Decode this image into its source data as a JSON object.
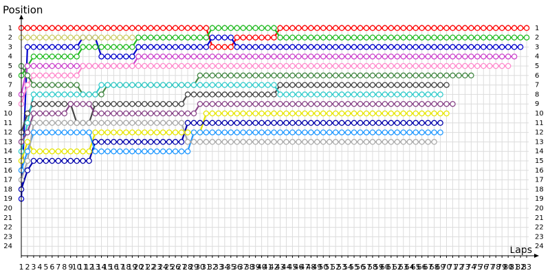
{
  "chart_data": {
    "type": "lapchart",
    "title": "Position",
    "x_label": "Laps",
    "xlim": [
      1,
      84
    ],
    "ylim": [
      0,
      25
    ],
    "y_reversed": true,
    "grid": true,
    "xticks": [
      1,
      2,
      3,
      4,
      5,
      6,
      7,
      8,
      9,
      10,
      11,
      12,
      13,
      14,
      15,
      16,
      17,
      18,
      19,
      20,
      21,
      22,
      23,
      24,
      25,
      26,
      27,
      28,
      29,
      30,
      31,
      32,
      33,
      34,
      35,
      36,
      37,
      38,
      39,
      40,
      41,
      42,
      43,
      44,
      45,
      46,
      47,
      48,
      49,
      50,
      51,
      52,
      53,
      54,
      55,
      56,
      57,
      58,
      59,
      60,
      61,
      62,
      63,
      64,
      65,
      66,
      67,
      68,
      69,
      70,
      71,
      72,
      73,
      74,
      75,
      76,
      77,
      78,
      79,
      80,
      81,
      82,
      83
    ],
    "yticks": [
      1,
      2,
      3,
      4,
      5,
      6,
      7,
      8,
      9,
      10,
      11,
      12,
      13,
      14,
      15,
      16,
      17,
      18,
      19,
      20,
      21,
      22,
      23,
      24
    ],
    "x": [
      1,
      2,
      3,
      4,
      5,
      6,
      7,
      8,
      9,
      10,
      11,
      12,
      13,
      14,
      15,
      16,
      17,
      18,
      19,
      20,
      21,
      22,
      23,
      24,
      25,
      26,
      27,
      28,
      29,
      30,
      31,
      32,
      33,
      34,
      35,
      36,
      37,
      38,
      39,
      40,
      41,
      42,
      43,
      44,
      45,
      46,
      47,
      48,
      49,
      50,
      51,
      52,
      53,
      54,
      55,
      56,
      57,
      58,
      59,
      60,
      61,
      62,
      63,
      64,
      65,
      66,
      67,
      68,
      69,
      70,
      71,
      72,
      73,
      74,
      75,
      76,
      77,
      78,
      79,
      80,
      81,
      82,
      83
    ],
    "series": [
      {
        "color": "#ff0000",
        "values": [
          1,
          1,
          1,
          1,
          1,
          1,
          1,
          1,
          1,
          1,
          1,
          1,
          1,
          1,
          1,
          1,
          1,
          1,
          1,
          1,
          1,
          1,
          1,
          1,
          1,
          1,
          1,
          1,
          1,
          1,
          1,
          3,
          3,
          3,
          3,
          2,
          2,
          2,
          2,
          2,
          2,
          2,
          1,
          1,
          1,
          1,
          1,
          1,
          1,
          1,
          1,
          1,
          1,
          1,
          1,
          1,
          1,
          1,
          1,
          1,
          1,
          1,
          1,
          1,
          1,
          1,
          1,
          1,
          1,
          1,
          1,
          1,
          1,
          1,
          1,
          1,
          1,
          1,
          1,
          1,
          1,
          1,
          1
        ]
      },
      {
        "color": "#22bb22",
        "values": [
          6,
          5,
          4,
          4,
          4,
          4,
          4,
          4,
          4,
          4,
          3,
          3,
          3,
          3,
          3,
          3,
          3,
          3,
          3,
          2,
          2,
          2,
          2,
          2,
          2,
          2,
          2,
          2,
          2,
          2,
          2,
          1,
          1,
          1,
          1,
          1,
          1,
          1,
          1,
          1,
          1,
          1,
          2,
          2,
          2,
          2,
          2,
          2,
          2,
          2,
          2,
          2,
          2,
          2,
          2,
          2,
          2,
          2,
          2,
          2,
          2,
          2,
          2,
          2,
          2,
          2,
          2,
          2,
          2,
          2,
          2,
          2,
          2,
          2,
          2,
          2,
          2,
          2,
          2,
          2,
          2,
          2,
          2
        ]
      },
      {
        "color": "#0000cc",
        "values": [
          19,
          3,
          3,
          3,
          3,
          3,
          3,
          3,
          3,
          3,
          2,
          2,
          2,
          4,
          4,
          4,
          4,
          4,
          4,
          3,
          3,
          3,
          3,
          3,
          3,
          3,
          3,
          3,
          3,
          3,
          3,
          2,
          2,
          2,
          2,
          3,
          3,
          3,
          3,
          3,
          3,
          3,
          3,
          3,
          3,
          3,
          3,
          3,
          3,
          3,
          3,
          3,
          3,
          3,
          3,
          3,
          3,
          3,
          3,
          3,
          3,
          3,
          3,
          3,
          3,
          3,
          3,
          3,
          3,
          3,
          3,
          3,
          3,
          3,
          3,
          3,
          3,
          3,
          3,
          3,
          3,
          3,
          null
        ]
      },
      {
        "color": "#cccc66",
        "values": [
          2,
          2,
          2,
          2,
          2,
          2,
          2,
          2,
          2,
          2,
          2,
          2,
          2,
          2,
          2,
          2,
          2,
          2,
          2,
          null,
          null,
          null,
          null,
          null,
          null,
          null,
          null,
          null,
          null,
          null,
          null,
          null,
          null,
          null,
          null,
          null,
          null,
          null,
          null,
          null,
          null,
          null,
          null,
          null,
          null,
          null,
          null,
          null,
          null,
          null,
          null,
          null,
          null,
          null,
          null,
          null,
          null,
          null,
          null,
          null,
          null,
          null,
          null,
          null,
          null,
          null,
          null,
          null,
          null,
          null,
          null,
          null,
          null,
          null,
          null,
          null,
          null,
          null,
          null,
          null,
          null,
          null,
          null
        ]
      },
      {
        "color": "#cc44cc",
        "values": [
          8,
          5,
          5,
          5,
          5,
          5,
          5,
          5,
          5,
          5,
          5,
          5,
          5,
          5,
          5,
          5,
          5,
          5,
          5,
          4,
          4,
          4,
          4,
          4,
          4,
          4,
          4,
          4,
          4,
          4,
          4,
          4,
          4,
          4,
          4,
          4,
          4,
          4,
          4,
          4,
          4,
          4,
          4,
          4,
          4,
          4,
          4,
          4,
          4,
          4,
          4,
          4,
          4,
          4,
          4,
          4,
          4,
          4,
          4,
          4,
          4,
          4,
          4,
          4,
          4,
          4,
          4,
          4,
          4,
          4,
          4,
          4,
          4,
          4,
          4,
          4,
          4,
          4,
          4,
          4,
          4,
          null,
          null
        ]
      },
      {
        "color": "#ff88cc",
        "values": [
          9,
          7,
          6,
          6,
          6,
          6,
          6,
          6,
          6,
          6,
          5,
          5,
          5,
          5,
          5,
          5,
          5,
          5,
          5,
          5,
          5,
          5,
          5,
          5,
          5,
          5,
          5,
          5,
          5,
          5,
          5,
          5,
          5,
          5,
          5,
          5,
          5,
          5,
          5,
          5,
          5,
          5,
          5,
          5,
          5,
          5,
          5,
          5,
          5,
          5,
          5,
          5,
          5,
          5,
          5,
          5,
          5,
          5,
          5,
          5,
          5,
          5,
          5,
          5,
          5,
          5,
          5,
          5,
          5,
          5,
          5,
          5,
          5,
          5,
          5,
          5,
          5,
          5,
          5,
          5,
          null,
          null,
          null
        ]
      },
      {
        "color": "#448844",
        "values": [
          5,
          6,
          7,
          7,
          7,
          7,
          7,
          7,
          7,
          7,
          8,
          8,
          8,
          8,
          7,
          7,
          7,
          7,
          7,
          7,
          7,
          7,
          7,
          7,
          7,
          7,
          7,
          7,
          7,
          6,
          6,
          6,
          6,
          6,
          6,
          6,
          6,
          6,
          6,
          6,
          6,
          6,
          6,
          6,
          6,
          6,
          6,
          6,
          6,
          6,
          6,
          6,
          6,
          6,
          6,
          6,
          6,
          6,
          6,
          6,
          6,
          6,
          6,
          6,
          6,
          6,
          6,
          6,
          6,
          6,
          6,
          6,
          6,
          6,
          null,
          null,
          null,
          null,
          null,
          null,
          null,
          null,
          null
        ]
      },
      {
        "color": "#444444",
        "values": [
          12,
          10,
          9,
          9,
          9,
          9,
          9,
          9,
          9,
          11,
          11,
          11,
          9,
          9,
          9,
          9,
          9,
          9,
          9,
          9,
          9,
          9,
          9,
          9,
          9,
          9,
          9,
          8,
          8,
          8,
          8,
          8,
          8,
          8,
          8,
          8,
          8,
          8,
          8,
          8,
          8,
          8,
          7,
          7,
          7,
          7,
          7,
          7,
          7,
          7,
          7,
          7,
          7,
          7,
          7,
          7,
          7,
          7,
          7,
          7,
          7,
          7,
          7,
          7,
          7,
          7,
          7,
          7,
          7,
          7,
          null,
          null,
          null,
          null,
          null,
          null,
          null,
          null,
          null,
          null,
          null,
          null,
          null
        ]
      },
      {
        "color": "#33cccc",
        "values": [
          14,
          11,
          8,
          8,
          8,
          8,
          8,
          8,
          8,
          8,
          8,
          8,
          8,
          7,
          7,
          7,
          7,
          7,
          7,
          7,
          7,
          7,
          7,
          7,
          7,
          7,
          7,
          7,
          7,
          7,
          7,
          7,
          7,
          7,
          7,
          7,
          7,
          7,
          7,
          7,
          7,
          7,
          8,
          8,
          8,
          8,
          8,
          8,
          8,
          8,
          8,
          8,
          8,
          8,
          8,
          8,
          8,
          8,
          8,
          8,
          8,
          8,
          8,
          8,
          8,
          8,
          8,
          8,
          8,
          null,
          null,
          null,
          null,
          null,
          null,
          null,
          null,
          null,
          null,
          null,
          null,
          null,
          null
        ]
      },
      {
        "color": "#884488",
        "values": [
          13,
          12,
          10,
          10,
          10,
          10,
          10,
          10,
          9,
          9,
          9,
          9,
          10,
          10,
          10,
          10,
          10,
          10,
          10,
          10,
          10,
          10,
          10,
          10,
          10,
          10,
          10,
          10,
          10,
          9,
          9,
          9,
          9,
          9,
          9,
          9,
          9,
          9,
          9,
          9,
          9,
          9,
          9,
          9,
          9,
          9,
          9,
          9,
          9,
          9,
          9,
          9,
          9,
          9,
          9,
          9,
          9,
          9,
          9,
          9,
          9,
          9,
          9,
          9,
          9,
          9,
          9,
          9,
          9,
          9,
          9,
          null,
          null,
          null,
          null,
          null,
          null,
          null,
          null,
          null,
          null,
          null,
          null
        ]
      },
      {
        "color": "#e6e600",
        "values": [
          15,
          13,
          14,
          14,
          14,
          14,
          14,
          14,
          14,
          14,
          14,
          14,
          12,
          12,
          12,
          12,
          12,
          12,
          12,
          12,
          12,
          12,
          12,
          12,
          12,
          12,
          12,
          12,
          12,
          12,
          10,
          10,
          10,
          10,
          10,
          10,
          10,
          10,
          10,
          10,
          10,
          10,
          10,
          10,
          10,
          10,
          10,
          10,
          10,
          10,
          10,
          10,
          10,
          10,
          10,
          10,
          10,
          10,
          10,
          10,
          10,
          10,
          10,
          10,
          10,
          10,
          10,
          10,
          10,
          10,
          null,
          null,
          null,
          null,
          null,
          null,
          null,
          null,
          null,
          null,
          null,
          null,
          null
        ]
      },
      {
        "color": "#0000aa",
        "values": [
          18,
          16,
          15,
          15,
          15,
          15,
          15,
          15,
          15,
          15,
          15,
          15,
          13,
          13,
          13,
          13,
          13,
          13,
          13,
          13,
          13,
          13,
          13,
          13,
          13,
          13,
          13,
          11,
          11,
          11,
          11,
          11,
          11,
          11,
          11,
          11,
          11,
          11,
          11,
          11,
          11,
          11,
          11,
          11,
          11,
          11,
          11,
          11,
          11,
          11,
          11,
          11,
          11,
          11,
          11,
          11,
          11,
          11,
          11,
          11,
          11,
          11,
          11,
          11,
          11,
          11,
          11,
          11,
          11,
          null,
          null,
          null,
          null,
          null,
          null,
          null,
          null,
          null,
          null,
          null,
          null,
          null,
          null
        ]
      },
      {
        "color": "#2299ff",
        "values": [
          16,
          14,
          12,
          12,
          12,
          12,
          12,
          12,
          12,
          12,
          12,
          12,
          14,
          14,
          14,
          14,
          14,
          14,
          14,
          14,
          14,
          14,
          14,
          14,
          14,
          14,
          14,
          14,
          12,
          12,
          12,
          12,
          12,
          12,
          12,
          12,
          12,
          12,
          12,
          12,
          12,
          12,
          12,
          12,
          12,
          12,
          12,
          12,
          12,
          12,
          12,
          12,
          12,
          12,
          12,
          12,
          12,
          12,
          12,
          12,
          12,
          12,
          12,
          12,
          12,
          12,
          12,
          12,
          12,
          null,
          null,
          null,
          null,
          null,
          null,
          null,
          null,
          null,
          null,
          null,
          null,
          null,
          null
        ]
      },
      {
        "color": "#aaaaaa",
        "values": [
          17,
          15,
          11,
          11,
          11,
          11,
          11,
          11,
          11,
          11,
          11,
          11,
          11,
          11,
          11,
          11,
          11,
          11,
          11,
          11,
          11,
          11,
          11,
          11,
          11,
          11,
          11,
          13,
          13,
          13,
          13,
          13,
          13,
          13,
          13,
          13,
          13,
          13,
          13,
          13,
          13,
          13,
          13,
          13,
          13,
          13,
          13,
          13,
          13,
          13,
          13,
          13,
          13,
          13,
          13,
          13,
          13,
          13,
          13,
          13,
          13,
          13,
          13,
          13,
          13,
          13,
          13,
          13,
          null,
          null,
          null,
          null,
          null,
          null,
          null,
          null,
          null,
          null,
          null,
          null,
          null,
          null,
          null
        ]
      }
    ]
  }
}
